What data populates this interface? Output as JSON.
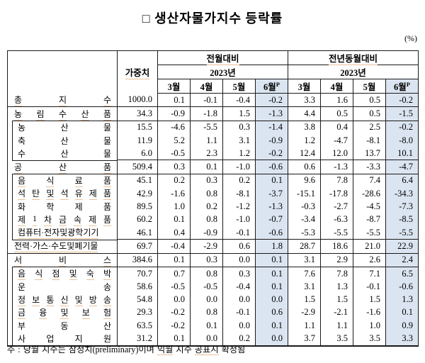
{
  "title": "□ 생산자물가지수 등락률",
  "unit_label": "(%)",
  "colors": {
    "highlight_column": "#dbe5f1",
    "table_border": "#1a1a1a",
    "spellcheck_underline": "#eabf97"
  },
  "table": {
    "header": {
      "weight_label": "가중치",
      "preliminary_sup": "P",
      "groups": [
        {
          "title": "전월대비",
          "year": "2023년",
          "months": [
            {
              "label": "3월"
            },
            {
              "label": "4월"
            },
            {
              "label": "5월"
            },
            {
              "label": "6월",
              "sup": "P",
              "highlight": true
            }
          ]
        },
        {
          "title": "전년동월대비",
          "year": "2023년",
          "months": [
            {
              "label": "3월"
            },
            {
              "label": "4월"
            },
            {
              "label": "5월"
            },
            {
              "label": "6월",
              "sup": "P",
              "highlight": true
            }
          ]
        }
      ]
    },
    "rows": [
      {
        "label": "총 지 수",
        "level": "main",
        "border_top": "none",
        "underline": true,
        "weight": "1000.0",
        "mom": [
          "0.1",
          "-0.1",
          "-0.4",
          "-0.2"
        ],
        "yoy": [
          "3.3",
          "1.6",
          "0.5",
          "-0.2"
        ]
      },
      {
        "label": "농 림 수 산 품",
        "level": "main",
        "border_top": "full",
        "underline": true,
        "weight": "34.3",
        "mom": [
          "-0.9",
          "-1.8",
          "1.5",
          "-1.3"
        ],
        "yoy": [
          "4.4",
          "0.5",
          "0.5",
          "-1.5"
        ]
      },
      {
        "label": "농 산 물",
        "level": "sub",
        "border_top": "inset",
        "underline": false,
        "weight": "15.5",
        "mom": [
          "-4.6",
          "-5.5",
          "0.3",
          "-1.4"
        ],
        "yoy": [
          "3.8",
          "0.4",
          "2.5",
          "-0.2"
        ]
      },
      {
        "label": "축 산 물",
        "level": "sub",
        "border_top": "none",
        "underline": false,
        "weight": "11.9",
        "mom": [
          "5.2",
          "1.1",
          "3.1",
          "-0.9"
        ],
        "yoy": [
          "1.2",
          "-4.7",
          "-8.1",
          "-8.0"
        ]
      },
      {
        "label": "수 산 물",
        "level": "sub",
        "border_top": "none",
        "underline": false,
        "weight": "6.0",
        "mom": [
          "-0.5",
          "2.3",
          "1.2",
          "-0.2"
        ],
        "yoy": [
          "12.4",
          "12.0",
          "13.7",
          "10.1"
        ]
      },
      {
        "label": "공 산 품",
        "level": "main",
        "border_top": "inset",
        "underline": true,
        "weight": "509.4",
        "mom": [
          "0.3",
          "0.1",
          "-1.0",
          "-0.6"
        ],
        "yoy": [
          "0.6",
          "-1.3",
          "-3.3",
          "-4.7"
        ]
      },
      {
        "label": "음 식 료 품",
        "level": "sub",
        "border_top": "inset",
        "underline": true,
        "weight": "45.1",
        "mom": [
          "0.2",
          "0.3",
          "0.2",
          "0.1"
        ],
        "yoy": [
          "9.6",
          "7.8",
          "7.4",
          "6.4"
        ]
      },
      {
        "label": "석 탄 및 석 유 제 품",
        "level": "sub",
        "border_top": "none",
        "underline": true,
        "weight": "42.9",
        "mom": [
          "-1.6",
          "0.8",
          "-8.1",
          "-3.7"
        ],
        "yoy": [
          "-15.1",
          "-17.8",
          "-28.6",
          "-34.3"
        ]
      },
      {
        "label": "화 학 제 품",
        "level": "sub",
        "border_top": "none",
        "underline": false,
        "weight": "89.5",
        "mom": [
          "1.0",
          "0.2",
          "-1.2",
          "-1.3"
        ],
        "yoy": [
          "-0.3",
          "-2.7",
          "-4.5",
          "-7.3"
        ]
      },
      {
        "label": "제 1 차 금 속 제 품",
        "level": "sub",
        "border_top": "none",
        "underline": true,
        "weight": "60.2",
        "mom": [
          "0.1",
          "0.8",
          "-1.0",
          "-0.7"
        ],
        "yoy": [
          "-3.4",
          "-6.3",
          "-8.7",
          "-8.5"
        ]
      },
      {
        "label": "컴퓨터·전자및광학기기",
        "level": "sub",
        "border_top": "none",
        "underline": true,
        "weight": "46.1",
        "mom": [
          "0.4",
          "-0.9",
          "-0.1",
          "-0.6"
        ],
        "yoy": [
          "-5.3",
          "-5.5",
          "-5.5",
          "-5.5"
        ]
      },
      {
        "label": "전력·가스·수도및폐기물",
        "level": "main",
        "border_top": "inset",
        "underline": true,
        "weight": "69.7",
        "mom": [
          "-0.4",
          "-2.9",
          "0.6",
          "1.8"
        ],
        "yoy": [
          "28.7",
          "18.6",
          "21.0",
          "22.9"
        ]
      },
      {
        "label": "서 비 스",
        "level": "main",
        "border_top": "full",
        "underline": true,
        "weight": "384.6",
        "mom": [
          "0.1",
          "0.3",
          "0.0",
          "0.1"
        ],
        "yoy": [
          "3.1",
          "2.9",
          "2.6",
          "2.4"
        ]
      },
      {
        "label": "음 식 점 및 숙 박",
        "level": "sub",
        "border_top": "inset",
        "underline": true,
        "weight": "70.7",
        "mom": [
          "0.7",
          "0.8",
          "0.3",
          "0.1"
        ],
        "yoy": [
          "7.6",
          "7.8",
          "7.1",
          "6.5"
        ]
      },
      {
        "label": "운 송",
        "level": "sub",
        "border_top": "none",
        "underline": false,
        "weight": "58.6",
        "mom": [
          "-0.5",
          "-0.5",
          "-0.4",
          "0.1"
        ],
        "yoy": [
          "3.1",
          "1.3",
          "-0.1",
          "-0.6"
        ]
      },
      {
        "label": "정 보 통 신 및 방 송",
        "level": "sub",
        "border_top": "none",
        "underline": true,
        "weight": "54.8",
        "mom": [
          "0.0",
          "0.0",
          "0.0",
          "0.0"
        ],
        "yoy": [
          "1.5",
          "1.5",
          "1.5",
          "1.3"
        ]
      },
      {
        "label": "금 융 및 보 험",
        "level": "sub",
        "border_top": "none",
        "underline": true,
        "weight": "29.3",
        "mom": [
          "-0.2",
          "0.8",
          "-0.1",
          "0.6"
        ],
        "yoy": [
          "-2.9",
          "-2.1",
          "-1.6",
          "0.1"
        ]
      },
      {
        "label": "부 동 산",
        "level": "sub",
        "border_top": "none",
        "underline": false,
        "weight": "63.5",
        "mom": [
          "-0.2",
          "0.1",
          "0.0",
          "0.1"
        ],
        "yoy": [
          "1.1",
          "1.1",
          "1.0",
          "0.9"
        ]
      },
      {
        "label": "사 업 지 원",
        "level": "sub",
        "border_top": "none",
        "underline": false,
        "weight": "31.2",
        "mom": [
          "0.1",
          "0.0",
          "0.2",
          "0.0"
        ],
        "yoy": [
          "3.7",
          "3.5",
          "3.5",
          "3.3"
        ]
      }
    ]
  },
  "footnote_parts": [
    {
      "text": "주 : 당월 지수는 잠정치(preliminary)이며 "
    },
    {
      "text": "익월",
      "u": true
    },
    {
      "text": " 지수 "
    },
    {
      "text": "공표시",
      "u": true
    },
    {
      "text": " 확정됨"
    }
  ]
}
